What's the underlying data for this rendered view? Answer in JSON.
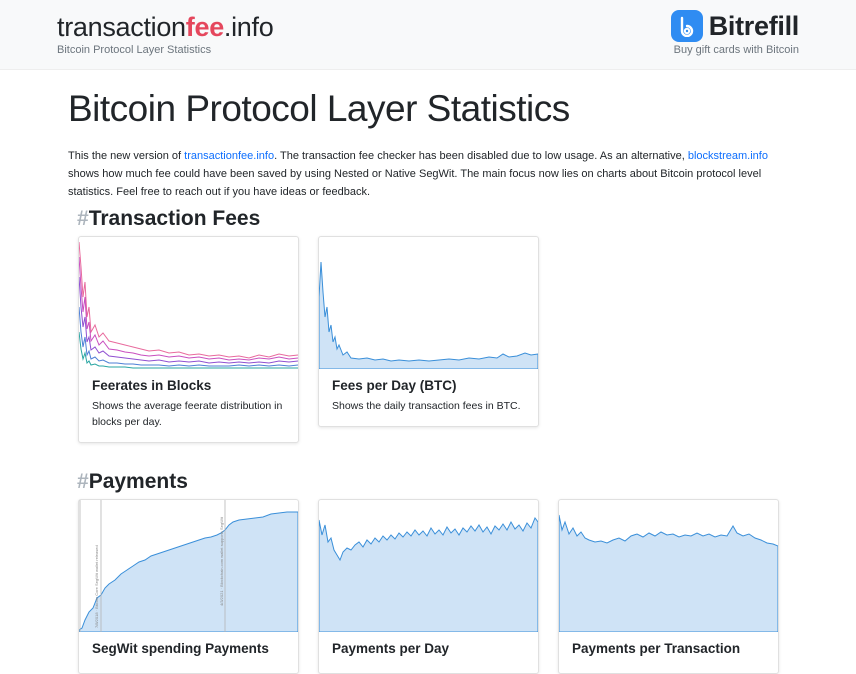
{
  "header": {
    "brand_prefix": "transaction",
    "brand_accent": "fee",
    "brand_suffix": ".info",
    "brand_subtitle": "Bitcoin Protocol Layer Statistics",
    "sponsor_name": "Bitrefill",
    "sponsor_tagline": "Buy gift cards with Bitcoin"
  },
  "main": {
    "title": "Bitcoin Protocol Layer Statistics",
    "intro": {
      "t1": "This the new version of ",
      "link1": "transactionfee.info",
      "t2": ". The transaction fee checker has been disabled due to low usage. As an alternative, ",
      "link2": "blockstream.info",
      "t3": " shows how much fee could have been saved by using Nested or Native SegWit. The main focus now lies on charts about Bitcoin protocol level statistics. Feel free to reach out if you have ideas or feedback."
    }
  },
  "sections": [
    {
      "hash": "#",
      "title": "Transaction Fees",
      "cards": [
        {
          "title": "Feerates in Blocks",
          "text": "Shows the average feerate distribution in blocks per day."
        },
        {
          "title": "Fees per Day (BTC)",
          "text": "Shows the daily transaction fees in BTC."
        }
      ]
    },
    {
      "hash": "#",
      "title": "Payments",
      "cards": [
        {
          "title": "SegWit spending Payments",
          "text": ""
        },
        {
          "title": "Payments per Day",
          "text": ""
        },
        {
          "title": "Payments per Transaction",
          "text": ""
        }
      ]
    }
  ],
  "chart_annotations": {
    "annotation_1": "7/8/2018 · Bitcoin Core SegWit wallet released",
    "annotation_2": "4/3/2021 · Blockchain.com wallet supports SegWit"
  },
  "colors": {
    "accent": "#e5475d",
    "link": "#0d6efd",
    "chart_line": "#3a8fd9",
    "chart_fill": "#cfe3f6",
    "sponsor_logo": "#2f8cf2"
  }
}
